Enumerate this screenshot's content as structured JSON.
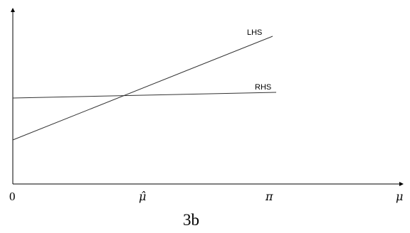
{
  "figure": {
    "caption": "3b",
    "x_axis": {
      "origin_label": "0",
      "mu_hat_label": "μ̂",
      "pi_label": "π",
      "axis_label": "μ"
    },
    "lines": {
      "lhs_label": "LHS",
      "rhs_label": "RHS"
    }
  }
}
